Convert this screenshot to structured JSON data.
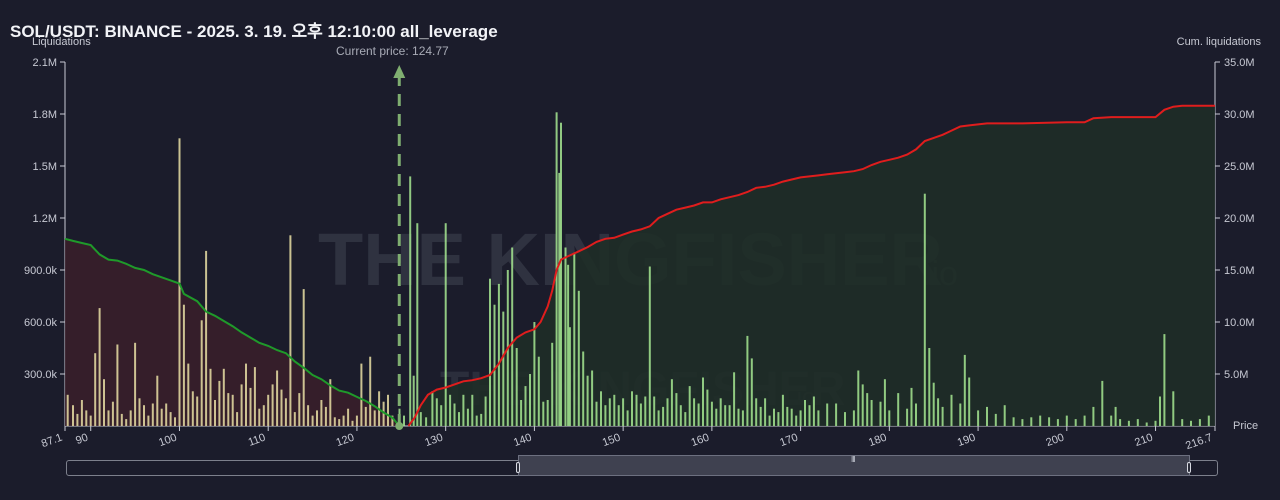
{
  "header": {
    "title": "SOL/USDT: BINANCE - 2025. 3. 19. 오후 12:10:00 all_leverage"
  },
  "watermark": {
    "text_main": "THE KINGFISHER",
    "text_suffix": ".io"
  },
  "colors": {
    "background": "#1b1c2b",
    "long_curve": "#1f9a2a",
    "short_curve": "#e01d1d",
    "bar_left": "#e9dfa5",
    "bar_right": "#a6e892",
    "current_price_line": "#7fae70"
  },
  "chart_data": {
    "type": "bar",
    "ylabel": "Liquidations",
    "y2label": "Cum. liquidations",
    "xlabel": "Price",
    "xlim": [
      87.1,
      216.7
    ],
    "ylim": [
      0,
      2100000
    ],
    "y2lim": [
      0,
      35000000
    ],
    "x_ticks": [
      "87.1",
      "90",
      "100",
      "110",
      "120",
      "130",
      "140",
      "150",
      "160",
      "170",
      "180",
      "190",
      "200",
      "210",
      "216.7"
    ],
    "y_ticks": [
      "2.1M",
      "1.8M",
      "1.5M",
      "1.2M",
      "900.0k",
      "600.0k",
      "300.0k"
    ],
    "y2_ticks": [
      "35.0M",
      "30.0M",
      "25.0M",
      "20.0M",
      "15.0M",
      "10.0M",
      "5.0M"
    ],
    "current_price": 124.77,
    "current_price_label": "Current price: 124.77",
    "bars": [
      [
        87.4,
        180000
      ],
      [
        88,
        120000
      ],
      [
        88.5,
        70000
      ],
      [
        89,
        150000
      ],
      [
        89.5,
        90000
      ],
      [
        90,
        60000
      ],
      [
        90.5,
        420000
      ],
      [
        91,
        680000
      ],
      [
        91.5,
        270000
      ],
      [
        92,
        90000
      ],
      [
        92.5,
        140000
      ],
      [
        93,
        470000
      ],
      [
        93.5,
        70000
      ],
      [
        94,
        40000
      ],
      [
        94.5,
        90000
      ],
      [
        95,
        480000
      ],
      [
        95.5,
        160000
      ],
      [
        96,
        120000
      ],
      [
        96.5,
        60000
      ],
      [
        97,
        130000
      ],
      [
        97.5,
        290000
      ],
      [
        98,
        100000
      ],
      [
        98.5,
        130000
      ],
      [
        99,
        80000
      ],
      [
        99.5,
        50000
      ],
      [
        100,
        1660000
      ],
      [
        100.5,
        700000
      ],
      [
        101,
        360000
      ],
      [
        101.5,
        200000
      ],
      [
        102,
        170000
      ],
      [
        102.5,
        610000
      ],
      [
        103,
        1010000
      ],
      [
        103.5,
        330000
      ],
      [
        104,
        150000
      ],
      [
        104.5,
        260000
      ],
      [
        105,
        330000
      ],
      [
        105.5,
        190000
      ],
      [
        106,
        180000
      ],
      [
        106.5,
        80000
      ],
      [
        107,
        240000
      ],
      [
        107.5,
        360000
      ],
      [
        108,
        220000
      ],
      [
        108.5,
        340000
      ],
      [
        109,
        100000
      ],
      [
        109.5,
        120000
      ],
      [
        110,
        180000
      ],
      [
        110.5,
        240000
      ],
      [
        111,
        320000
      ],
      [
        111.5,
        210000
      ],
      [
        112,
        160000
      ],
      [
        112.5,
        1100000
      ],
      [
        113,
        80000
      ],
      [
        113.5,
        190000
      ],
      [
        114,
        790000
      ],
      [
        114.5,
        120000
      ],
      [
        115,
        60000
      ],
      [
        115.5,
        90000
      ],
      [
        116,
        150000
      ],
      [
        116.5,
        110000
      ],
      [
        117,
        270000
      ],
      [
        117.5,
        50000
      ],
      [
        118,
        40000
      ],
      [
        118.5,
        60000
      ],
      [
        119,
        100000
      ],
      [
        119.5,
        30000
      ],
      [
        120,
        60000
      ],
      [
        120.5,
        360000
      ],
      [
        121,
        110000
      ],
      [
        121.5,
        400000
      ],
      [
        122,
        90000
      ],
      [
        122.5,
        200000
      ],
      [
        123,
        140000
      ],
      [
        123.5,
        180000
      ],
      [
        124,
        60000
      ],
      [
        124.8,
        100000
      ],
      [
        125.3,
        60000
      ],
      [
        126,
        1440000
      ],
      [
        126.4,
        290000
      ],
      [
        126.8,
        1170000
      ],
      [
        127.2,
        80000
      ],
      [
        127.8,
        50000
      ],
      [
        128.5,
        200000
      ],
      [
        129,
        160000
      ],
      [
        129.5,
        120000
      ],
      [
        130,
        1170000
      ],
      [
        130.5,
        180000
      ],
      [
        131,
        130000
      ],
      [
        131.5,
        80000
      ],
      [
        132,
        180000
      ],
      [
        132.5,
        100000
      ],
      [
        133,
        180000
      ],
      [
        133.5,
        60000
      ],
      [
        134,
        70000
      ],
      [
        134.5,
        170000
      ],
      [
        135,
        850000
      ],
      [
        135.5,
        700000
      ],
      [
        136,
        820000
      ],
      [
        136.5,
        660000
      ],
      [
        137,
        900000
      ],
      [
        137.5,
        1030000
      ],
      [
        138,
        450000
      ],
      [
        138.5,
        150000
      ],
      [
        139,
        230000
      ],
      [
        139.5,
        300000
      ],
      [
        140,
        600000
      ],
      [
        140.5,
        400000
      ],
      [
        141,
        140000
      ],
      [
        141.5,
        150000
      ],
      [
        142,
        480000
      ],
      [
        142.5,
        1810000
      ],
      [
        142.8,
        1460000
      ],
      [
        143,
        1750000
      ],
      [
        143.5,
        1030000
      ],
      [
        143.8,
        930000
      ],
      [
        144,
        570000
      ],
      [
        144.5,
        1000000
      ],
      [
        145,
        780000
      ],
      [
        145.5,
        430000
      ],
      [
        146,
        290000
      ],
      [
        146.5,
        320000
      ],
      [
        147,
        140000
      ],
      [
        147.5,
        200000
      ],
      [
        148,
        120000
      ],
      [
        148.5,
        160000
      ],
      [
        149,
        180000
      ],
      [
        149.5,
        120000
      ],
      [
        150,
        160000
      ],
      [
        150.5,
        90000
      ],
      [
        151,
        200000
      ],
      [
        151.5,
        180000
      ],
      [
        152,
        130000
      ],
      [
        152.5,
        170000
      ],
      [
        153,
        920000
      ],
      [
        153.5,
        170000
      ],
      [
        154,
        90000
      ],
      [
        154.5,
        110000
      ],
      [
        155,
        160000
      ],
      [
        155.5,
        270000
      ],
      [
        156,
        190000
      ],
      [
        156.5,
        120000
      ],
      [
        157,
        80000
      ],
      [
        157.5,
        230000
      ],
      [
        158,
        160000
      ],
      [
        158.5,
        130000
      ],
      [
        159,
        280000
      ],
      [
        159.5,
        210000
      ],
      [
        160,
        140000
      ],
      [
        160.5,
        100000
      ],
      [
        161,
        160000
      ],
      [
        161.5,
        120000
      ],
      [
        162,
        120000
      ],
      [
        162.5,
        310000
      ],
      [
        163,
        100000
      ],
      [
        163.5,
        90000
      ],
      [
        164,
        520000
      ],
      [
        164.5,
        390000
      ],
      [
        165,
        160000
      ],
      [
        165.5,
        110000
      ],
      [
        166,
        160000
      ],
      [
        166.5,
        60000
      ],
      [
        167,
        100000
      ],
      [
        167.5,
        80000
      ],
      [
        168,
        180000
      ],
      [
        168.5,
        110000
      ],
      [
        169,
        100000
      ],
      [
        169.5,
        60000
      ],
      [
        170,
        90000
      ],
      [
        170.5,
        150000
      ],
      [
        171,
        120000
      ],
      [
        171.5,
        170000
      ],
      [
        172,
        90000
      ],
      [
        173,
        130000
      ],
      [
        174,
        130000
      ],
      [
        175,
        80000
      ],
      [
        176,
        90000
      ],
      [
        176.5,
        320000
      ],
      [
        177,
        240000
      ],
      [
        177.5,
        190000
      ],
      [
        178,
        150000
      ],
      [
        179,
        140000
      ],
      [
        179.5,
        270000
      ],
      [
        180,
        90000
      ],
      [
        181,
        190000
      ],
      [
        182,
        100000
      ],
      [
        182.5,
        220000
      ],
      [
        183,
        130000
      ],
      [
        184,
        1340000
      ],
      [
        184.5,
        450000
      ],
      [
        185,
        250000
      ],
      [
        185.5,
        160000
      ],
      [
        186,
        110000
      ],
      [
        187,
        180000
      ],
      [
        188,
        130000
      ],
      [
        188.5,
        410000
      ],
      [
        189,
        280000
      ],
      [
        190,
        90000
      ],
      [
        191,
        110000
      ],
      [
        192,
        70000
      ],
      [
        193,
        120000
      ],
      [
        194,
        50000
      ],
      [
        195,
        40000
      ],
      [
        196,
        50000
      ],
      [
        197,
        60000
      ],
      [
        198,
        50000
      ],
      [
        199,
        40000
      ],
      [
        200,
        60000
      ],
      [
        201,
        40000
      ],
      [
        202,
        60000
      ],
      [
        203,
        110000
      ],
      [
        204,
        260000
      ],
      [
        205,
        60000
      ],
      [
        205.5,
        110000
      ],
      [
        206,
        40000
      ],
      [
        207,
        30000
      ],
      [
        208,
        40000
      ],
      [
        209,
        20000
      ],
      [
        210,
        30000
      ],
      [
        210.5,
        170000
      ],
      [
        211,
        530000
      ],
      [
        212,
        200000
      ],
      [
        213,
        40000
      ],
      [
        214,
        30000
      ],
      [
        215,
        40000
      ],
      [
        216,
        60000
      ]
    ],
    "long_cum": [
      [
        87.1,
        18000000
      ],
      [
        88,
        17800000
      ],
      [
        89,
        17600000
      ],
      [
        90,
        17400000
      ],
      [
        91,
        16500000
      ],
      [
        92,
        16000000
      ],
      [
        93,
        15900000
      ],
      [
        94,
        15600000
      ],
      [
        95,
        15200000
      ],
      [
        96,
        15000000
      ],
      [
        97,
        14600000
      ],
      [
        98,
        14300000
      ],
      [
        99,
        14000000
      ],
      [
        100,
        13700000
      ],
      [
        100.5,
        12700000
      ],
      [
        102,
        12000000
      ],
      [
        103,
        11000000
      ],
      [
        104,
        10600000
      ],
      [
        105,
        10100000
      ],
      [
        106,
        9600000
      ],
      [
        107,
        9000000
      ],
      [
        108,
        8500000
      ],
      [
        109,
        8000000
      ],
      [
        110,
        7700000
      ],
      [
        111,
        7300000
      ],
      [
        112,
        7000000
      ],
      [
        113,
        6200000
      ],
      [
        114,
        5600000
      ],
      [
        115,
        4900000
      ],
      [
        116,
        4500000
      ],
      [
        117,
        3900000
      ],
      [
        118,
        3400000
      ],
      [
        119,
        3200000
      ],
      [
        120,
        2800000
      ],
      [
        121,
        2400000
      ],
      [
        122,
        1900000
      ],
      [
        123,
        1300000
      ],
      [
        124,
        800000
      ],
      [
        124.77,
        0
      ]
    ],
    "short_cum": [
      [
        125.8,
        0
      ],
      [
        126.5,
        800000
      ],
      [
        127.2,
        2000000
      ],
      [
        128,
        3000000
      ],
      [
        129,
        3500000
      ],
      [
        130,
        3700000
      ],
      [
        131,
        4000000
      ],
      [
        132,
        4300000
      ],
      [
        133,
        4400000
      ],
      [
        134,
        4600000
      ],
      [
        135,
        4900000
      ],
      [
        136,
        6000000
      ],
      [
        137,
        7500000
      ],
      [
        138,
        8500000
      ],
      [
        139,
        9000000
      ],
      [
        140,
        9300000
      ],
      [
        140.7,
        10000000
      ],
      [
        141.5,
        11500000
      ],
      [
        142,
        13000000
      ],
      [
        142.5,
        15000000
      ],
      [
        143,
        16000000
      ],
      [
        144,
        16400000
      ],
      [
        145,
        16800000
      ],
      [
        146,
        17200000
      ],
      [
        147,
        17700000
      ],
      [
        148,
        18000000
      ],
      [
        149,
        18100000
      ],
      [
        150,
        18400000
      ],
      [
        151,
        18700000
      ],
      [
        152,
        18900000
      ],
      [
        153,
        19200000
      ],
      [
        154,
        20000000
      ],
      [
        155,
        20400000
      ],
      [
        156,
        20800000
      ],
      [
        157,
        21000000
      ],
      [
        158,
        21200000
      ],
      [
        159,
        21500000
      ],
      [
        160,
        21500000
      ],
      [
        161,
        21800000
      ],
      [
        162,
        22000000
      ],
      [
        163,
        22200000
      ],
      [
        164,
        22500000
      ],
      [
        165,
        22900000
      ],
      [
        166,
        23000000
      ],
      [
        167,
        23200000
      ],
      [
        168,
        23500000
      ],
      [
        169,
        23700000
      ],
      [
        170,
        23900000
      ],
      [
        171,
        24000000
      ],
      [
        172,
        24100000
      ],
      [
        173,
        24200000
      ],
      [
        174,
        24300000
      ],
      [
        175,
        24400000
      ],
      [
        176,
        24500000
      ],
      [
        177,
        24700000
      ],
      [
        178,
        25100000
      ],
      [
        179,
        25400000
      ],
      [
        180,
        25600000
      ],
      [
        181,
        25800000
      ],
      [
        182,
        26100000
      ],
      [
        183,
        26600000
      ],
      [
        184,
        27400000
      ],
      [
        185,
        27700000
      ],
      [
        186,
        28000000
      ],
      [
        187,
        28400000
      ],
      [
        188,
        28800000
      ],
      [
        189,
        28900000
      ],
      [
        190,
        29000000
      ],
      [
        191,
        29100000
      ],
      [
        195,
        29100000
      ],
      [
        200,
        29200000
      ],
      [
        202,
        29200000
      ],
      [
        203,
        29600000
      ],
      [
        205,
        29700000
      ],
      [
        210,
        29700000
      ],
      [
        211,
        30400000
      ],
      [
        212,
        30700000
      ],
      [
        213,
        30800000
      ],
      [
        216.7,
        30800000
      ]
    ]
  },
  "scrollbar": {
    "grip": "III"
  }
}
